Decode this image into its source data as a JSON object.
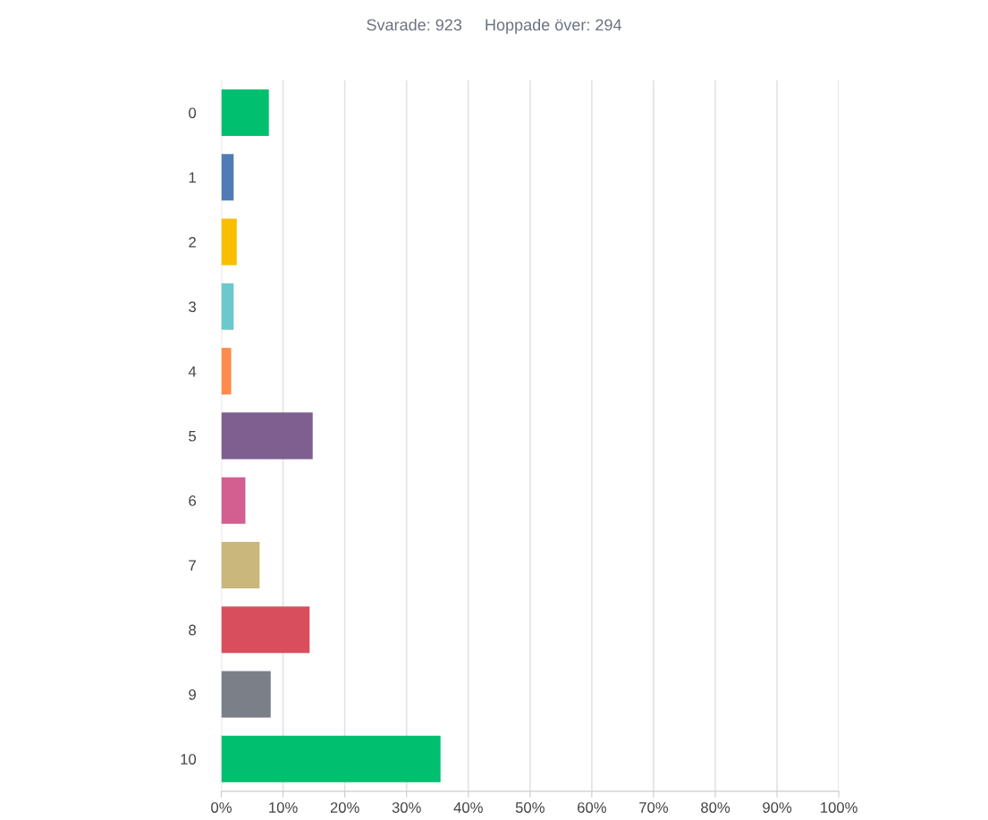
{
  "chart_data": {
    "type": "bar",
    "orientation": "horizontal",
    "title": "Svarade: 923     Hoppade över: 294",
    "categories": [
      "0",
      "1",
      "2",
      "3",
      "4",
      "5",
      "6",
      "7",
      "8",
      "9",
      "10"
    ],
    "values": [
      7.7,
      2.0,
      2.5,
      2.0,
      1.6,
      14.8,
      3.9,
      6.2,
      14.3,
      8.0,
      35.5
    ],
    "colors": [
      "#00bf6f",
      "#507cb6",
      "#f9be00",
      "#6bc8cd",
      "#ff8b4f",
      "#7f5f90",
      "#d25f90",
      "#c9b77b",
      "#d94e5c",
      "#7b8088",
      "#00bf6f"
    ],
    "xlim": [
      0,
      100
    ],
    "xticks": [
      {
        "value": 0,
        "label": "0%"
      },
      {
        "value": 10,
        "label": "10%"
      },
      {
        "value": 20,
        "label": "20%"
      },
      {
        "value": 30,
        "label": "30%"
      },
      {
        "value": 40,
        "label": "40%"
      },
      {
        "value": 50,
        "label": "50%"
      },
      {
        "value": 60,
        "label": "60%"
      },
      {
        "value": 70,
        "label": "70%"
      },
      {
        "value": 80,
        "label": "80%"
      },
      {
        "value": 90,
        "label": "90%"
      },
      {
        "value": 100,
        "label": "100%"
      }
    ],
    "grid": "x"
  }
}
